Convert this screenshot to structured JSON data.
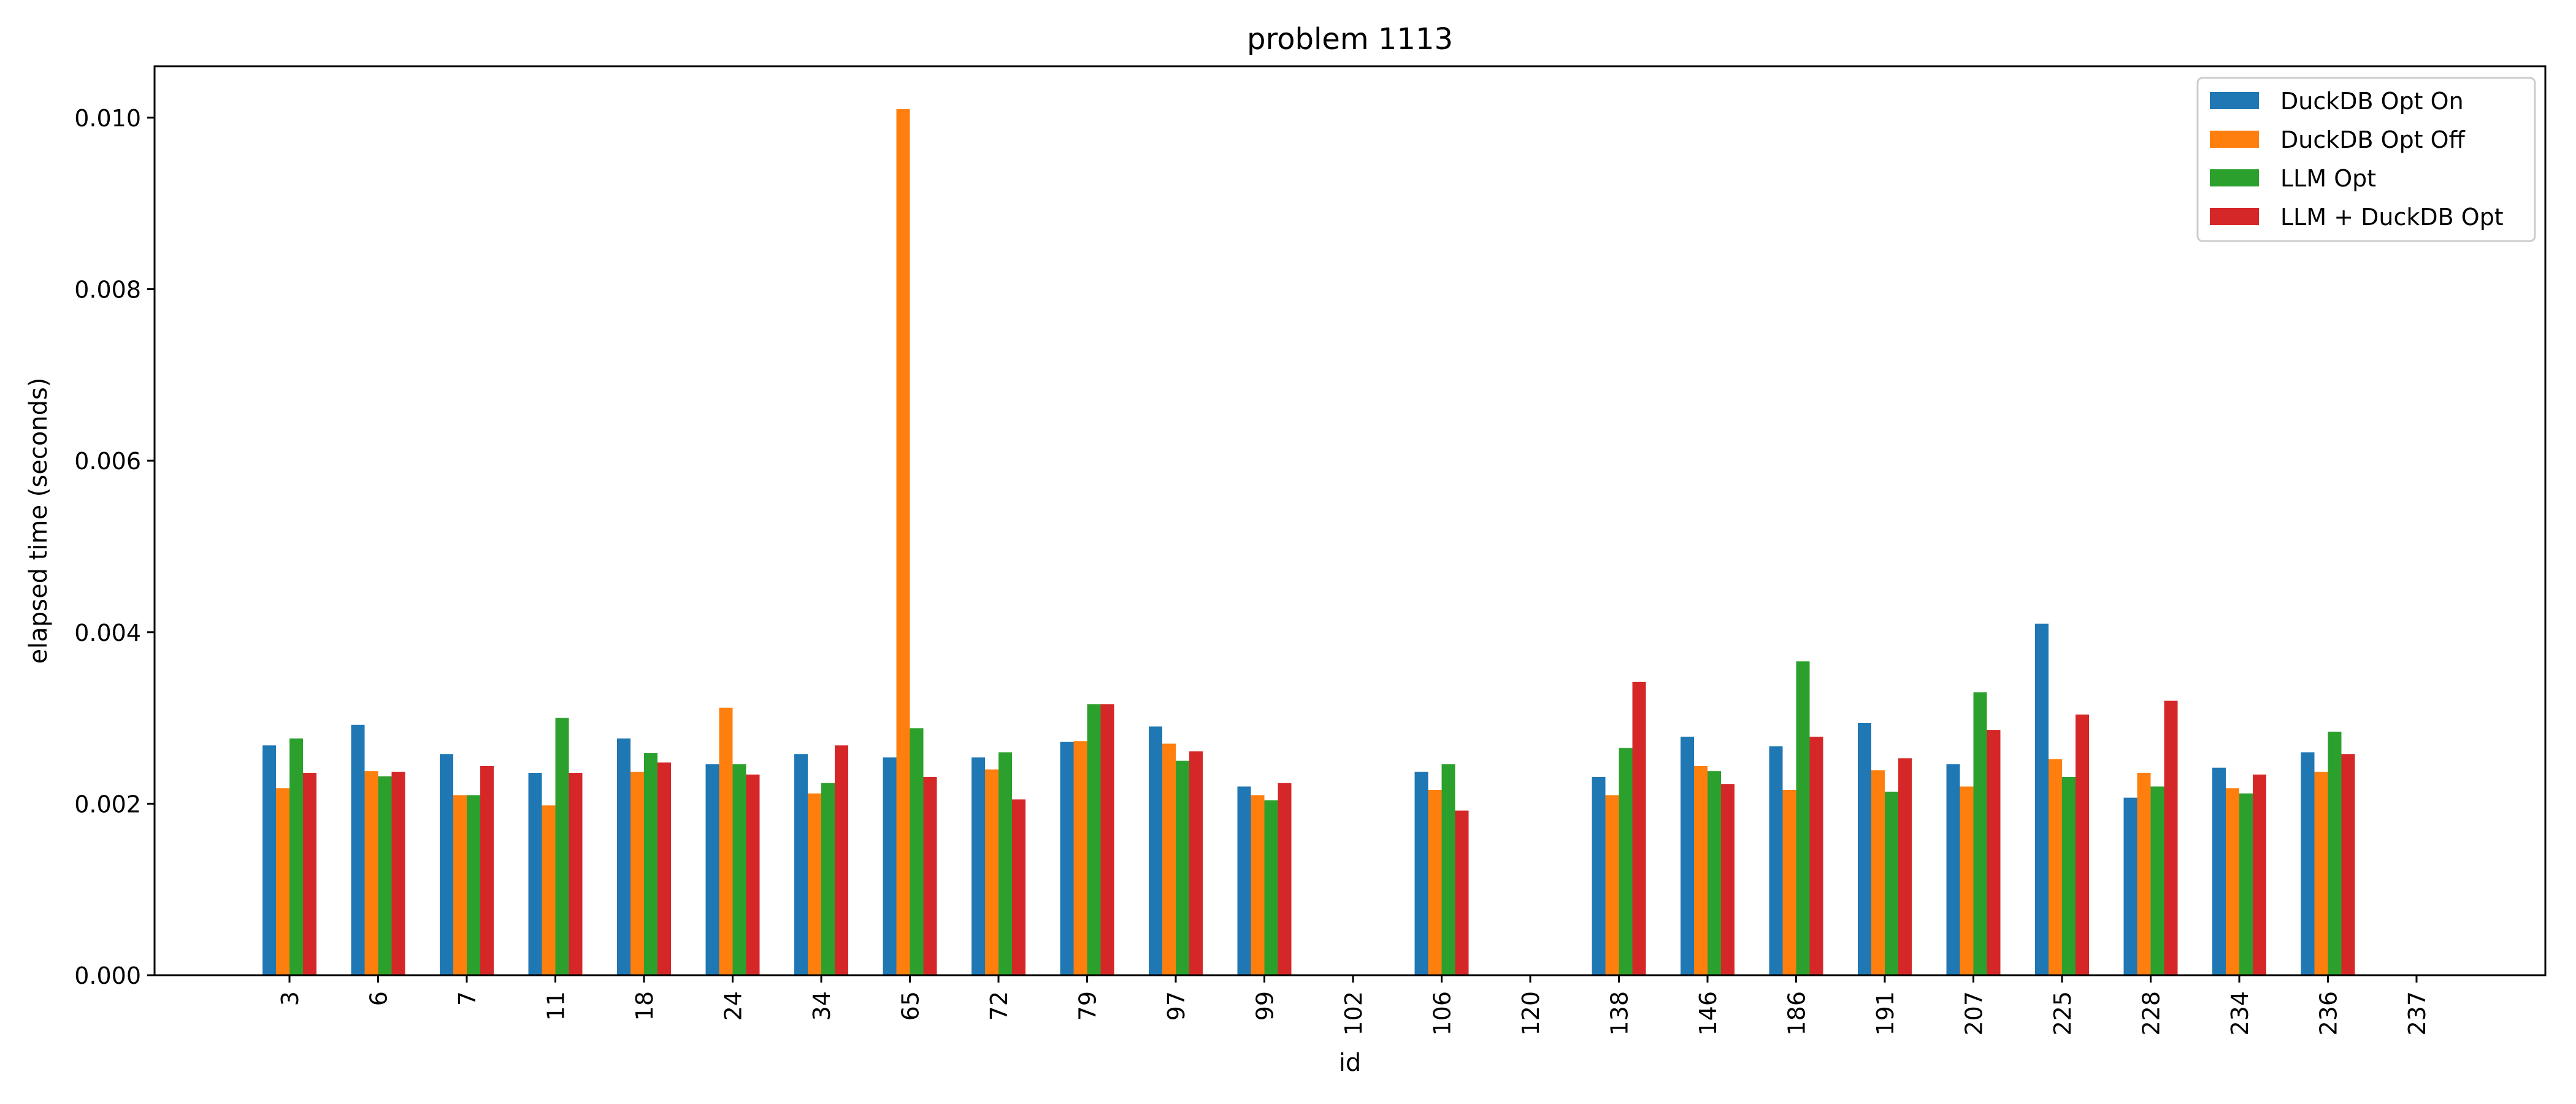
{
  "chart_data": {
    "type": "bar",
    "title": "problem 1113",
    "xlabel": "id",
    "ylabel": "elapsed time (seconds)",
    "ylim": [
      0,
      0.0106
    ],
    "yticks": [
      "0.000",
      "0.002",
      "0.004",
      "0.006",
      "0.008",
      "0.010"
    ],
    "ytick_values": [
      0,
      0.002,
      0.004,
      0.006,
      0.008,
      0.01
    ],
    "grid": false,
    "legend_position": "top-right",
    "categories": [
      "3",
      "6",
      "7",
      "11",
      "18",
      "24",
      "34",
      "65",
      "72",
      "79",
      "97",
      "99",
      "102",
      "106",
      "120",
      "138",
      "146",
      "186",
      "191",
      "207",
      "225",
      "228",
      "234",
      "236",
      "237"
    ],
    "series": [
      {
        "name": "DuckDB Opt On",
        "color": "#1f77b4",
        "values": [
          0.00268,
          0.00292,
          0.00258,
          0.00236,
          0.00276,
          0.00246,
          0.00258,
          0.00254,
          0.00254,
          0.00272,
          0.0029,
          0.0022,
          0,
          0.00237,
          0,
          0.00231,
          0.00278,
          0.00267,
          0.00294,
          0.00246,
          0.0041,
          0.00207,
          0.00242,
          0.0026,
          0
        ]
      },
      {
        "name": "DuckDB Opt Off",
        "color": "#ff7f0e",
        "values": [
          0.00218,
          0.00238,
          0.0021,
          0.00198,
          0.00237,
          0.00312,
          0.00212,
          0.0101,
          0.0024,
          0.00273,
          0.0027,
          0.0021,
          0,
          0.00216,
          0,
          0.0021,
          0.00244,
          0.00216,
          0.00239,
          0.0022,
          0.00252,
          0.00236,
          0.00218,
          0.00237,
          0
        ]
      },
      {
        "name": "LLM Opt",
        "color": "#2ca02c",
        "values": [
          0.00276,
          0.00232,
          0.0021,
          0.003,
          0.00259,
          0.00246,
          0.00224,
          0.00288,
          0.0026,
          0.00316,
          0.0025,
          0.00204,
          0,
          0.00246,
          0,
          0.00265,
          0.00238,
          0.00366,
          0.00214,
          0.0033,
          0.00231,
          0.0022,
          0.00212,
          0.00284,
          0
        ]
      },
      {
        "name": "LLM + DuckDB Opt",
        "color": "#d62728",
        "values": [
          0.00236,
          0.00237,
          0.00244,
          0.00236,
          0.00248,
          0.00234,
          0.00268,
          0.00231,
          0.00205,
          0.00316,
          0.00261,
          0.00224,
          0,
          0.00192,
          0,
          0.00342,
          0.00223,
          0.00278,
          0.00253,
          0.00286,
          0.00304,
          0.0032,
          0.00234,
          0.00258,
          0
        ]
      }
    ]
  }
}
